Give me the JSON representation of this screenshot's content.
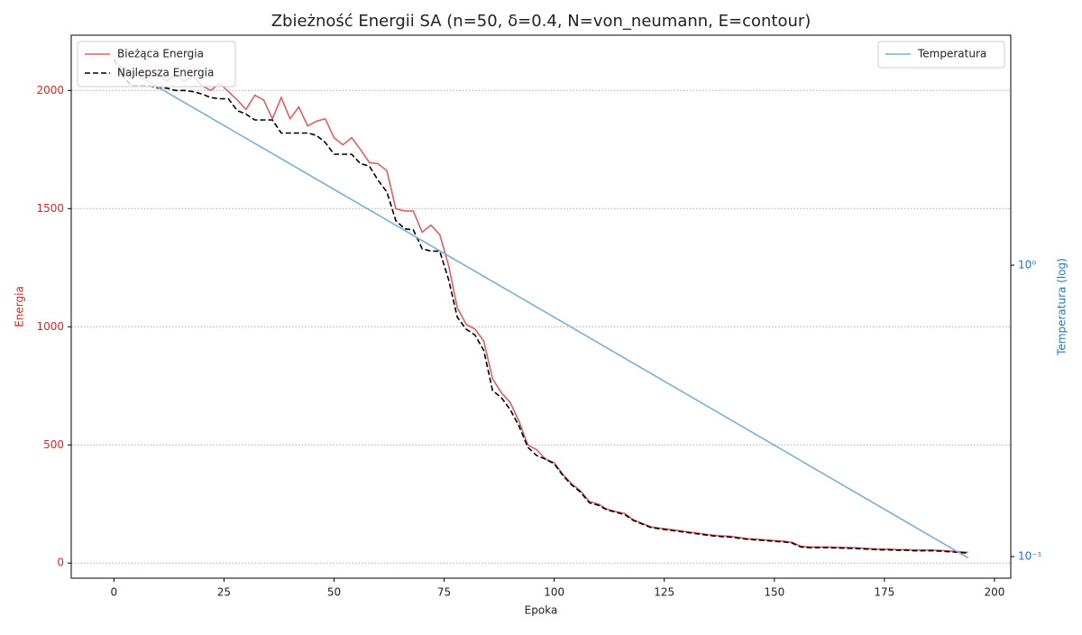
{
  "chart_data": {
    "type": "line",
    "title": "Zbieżność Energii SA (n=50, δ=0.4, N=von_neumann, E=contour)",
    "xlabel": "Epoka",
    "ylabel": "Energia",
    "y2label": "Temperatura (log)",
    "ylabel_color": "#d62728",
    "y2label_color": "#1f77b4",
    "xlim": [
      -9.7,
      203.7
    ],
    "xticks": [
      0,
      25,
      50,
      75,
      100,
      125,
      150,
      175,
      200
    ],
    "ylim": [
      -64,
      2234
    ],
    "yticks": [
      0,
      500,
      1000,
      1500,
      2000
    ],
    "y2lim": [
      0.0843,
      6.16
    ],
    "y2scale": "log",
    "y2ticks": [
      {
        "value": 0.1,
        "label": "10⁻¹"
      },
      {
        "value": 1,
        "label": "10⁰"
      }
    ],
    "grid": true,
    "legend": "upper left",
    "legend2": "upper right",
    "x": [
      0,
      2,
      4,
      6,
      8,
      10,
      12,
      14,
      16,
      18,
      20,
      22,
      24,
      26,
      28,
      30,
      32,
      34,
      36,
      38,
      40,
      42,
      44,
      46,
      48,
      50,
      52,
      54,
      56,
      58,
      60,
      62,
      64,
      66,
      68,
      70,
      72,
      74,
      76,
      78,
      80,
      82,
      84,
      86,
      88,
      90,
      92,
      94,
      96,
      98,
      100,
      102,
      104,
      106,
      108,
      110,
      112,
      114,
      116,
      118,
      120,
      122,
      124,
      126,
      128,
      130,
      132,
      134,
      136,
      138,
      140,
      142,
      144,
      146,
      148,
      150,
      152,
      154,
      156,
      158,
      160,
      162,
      164,
      166,
      168,
      170,
      172,
      174,
      176,
      178,
      180,
      182,
      184,
      186,
      188,
      190,
      192,
      194
    ],
    "series": [
      {
        "name": "Bieżąca Energia",
        "color": "#e06060",
        "linestyle": "solid",
        "values": [
          2130,
          2090,
          2060,
          2080,
          2060,
          2070,
          2040,
          2070,
          2040,
          2060,
          2020,
          2000,
          2030,
          1995,
          1960,
          1920,
          1980,
          1960,
          1880,
          1970,
          1880,
          1930,
          1850,
          1870,
          1880,
          1800,
          1770,
          1800,
          1750,
          1695,
          1690,
          1660,
          1500,
          1490,
          1490,
          1400,
          1430,
          1390,
          1260,
          1080,
          1010,
          990,
          940,
          780,
          720,
          680,
          600,
          500,
          480,
          440,
          425,
          375,
          335,
          305,
          260,
          250,
          228,
          218,
          210,
          183,
          168,
          153,
          148,
          143,
          138,
          133,
          128,
          123,
          118,
          115,
          113,
          108,
          103,
          101,
          98,
          95,
          93,
          88,
          71,
          68,
          68,
          68,
          67,
          66,
          65,
          63,
          61,
          59,
          59,
          57,
          57,
          55,
          55,
          55,
          53,
          51,
          48,
          45
        ]
      },
      {
        "name": "Najlepsza Energia",
        "color": "#000000",
        "linestyle": "dashed",
        "values": [
          2130,
          2060,
          2020,
          2020,
          2020,
          2010,
          2010,
          2000,
          2000,
          1995,
          1985,
          1970,
          1965,
          1965,
          1915,
          1900,
          1875,
          1875,
          1875,
          1820,
          1820,
          1820,
          1820,
          1810,
          1780,
          1730,
          1730,
          1730,
          1690,
          1680,
          1620,
          1570,
          1450,
          1415,
          1410,
          1330,
          1320,
          1320,
          1200,
          1040,
          990,
          965,
          900,
          730,
          700,
          650,
          580,
          490,
          455,
          440,
          420,
          370,
          330,
          300,
          255,
          245,
          225,
          215,
          205,
          180,
          165,
          150,
          145,
          140,
          135,
          130,
          125,
          120,
          115,
          112,
          110,
          105,
          100,
          98,
          95,
          92,
          90,
          85,
          68,
          65,
          65,
          65,
          64,
          63,
          62,
          60,
          58,
          56,
          56,
          54,
          54,
          52,
          52,
          52,
          50,
          48,
          45,
          42
        ]
      },
      {
        "name": "Temperatura",
        "color": "#7bafd4",
        "linestyle": "solid",
        "axis": "y2",
        "x": [
          0,
          50,
          100,
          150,
          194
        ],
        "values": [
          5,
          1.82,
          0.663,
          0.241,
          0.099
        ]
      }
    ]
  }
}
